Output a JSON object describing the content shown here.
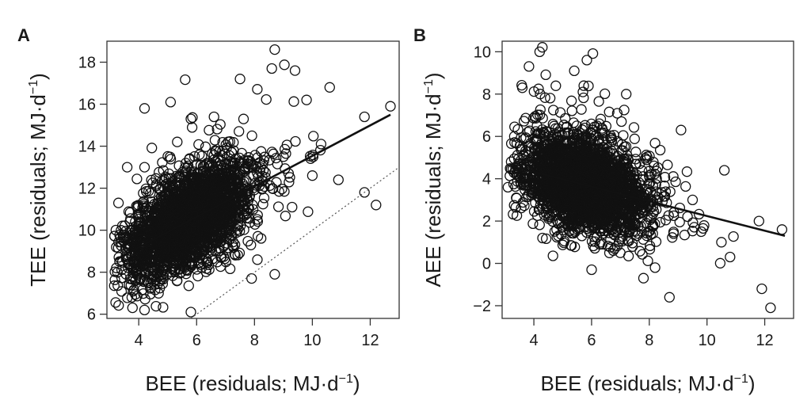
{
  "chart_data": [
    {
      "type": "scatter",
      "panel_label": "A",
      "xlabel": "BEE (residuals; MJ·d",
      "xlabel_sup": "−1",
      "xlabel_close": ")",
      "ylabel": "TEE (residuals; MJ·d",
      "ylabel_sup": "−1",
      "ylabel_close": ")",
      "xlim": [
        2.9,
        13.0
      ],
      "ylim": [
        5.8,
        19.0
      ],
      "xticks": [
        4,
        6,
        8,
        10,
        12
      ],
      "yticks": [
        6,
        8,
        10,
        12,
        14,
        16,
        18
      ],
      "grid": false,
      "legend": "none",
      "marker": "open-circle",
      "n_points_approx": 2500,
      "fit_line": {
        "x": [
          3.2,
          12.7
        ],
        "y": [
          8.6,
          15.5
        ]
      },
      "reference_line": {
        "x": [
          5.8,
          13.0
        ],
        "y": [
          5.8,
          13.0
        ],
        "style": "dotted"
      },
      "distribution": {
        "x_mean": 5.6,
        "x_sd": 1.05,
        "y_intercept": 6.27,
        "slope": 0.726,
        "resid_sd": 1.1
      },
      "outliers": [
        {
          "x": 8.7,
          "y": 18.6
        },
        {
          "x": 8.6,
          "y": 17.7
        },
        {
          "x": 9.4,
          "y": 17.6
        },
        {
          "x": 12.7,
          "y": 15.9
        },
        {
          "x": 11.8,
          "y": 15.4
        },
        {
          "x": 10.6,
          "y": 16.8
        },
        {
          "x": 10.3,
          "y": 14.1
        },
        {
          "x": 12.2,
          "y": 11.2
        },
        {
          "x": 11.8,
          "y": 11.8
        },
        {
          "x": 10.9,
          "y": 12.4
        },
        {
          "x": 4.2,
          "y": 15.8
        },
        {
          "x": 5.1,
          "y": 16.1
        },
        {
          "x": 5.8,
          "y": 15.3
        },
        {
          "x": 4.2,
          "y": 13.0
        },
        {
          "x": 3.3,
          "y": 11.3
        },
        {
          "x": 3.6,
          "y": 13.0
        },
        {
          "x": 8.7,
          "y": 7.9
        },
        {
          "x": 7.9,
          "y": 7.7
        },
        {
          "x": 8.1,
          "y": 8.6
        },
        {
          "x": 5.8,
          "y": 6.1
        },
        {
          "x": 4.2,
          "y": 6.2
        },
        {
          "x": 9.0,
          "y": 13.5
        },
        {
          "x": 7.5,
          "y": 17.2
        },
        {
          "x": 6.6,
          "y": 15.4
        },
        {
          "x": 9.8,
          "y": 16.2
        },
        {
          "x": 10.0,
          "y": 12.6
        },
        {
          "x": 9.3,
          "y": 11.1
        }
      ]
    },
    {
      "type": "scatter",
      "panel_label": "B",
      "xlabel": "BEE (residuals; MJ·d",
      "xlabel_sup": "−1",
      "xlabel_close": ")",
      "ylabel": "AEE (residuals; MJ·d",
      "ylabel_sup": "−1",
      "ylabel_close": ")",
      "xlim": [
        2.9,
        13.0
      ],
      "ylim": [
        -2.6,
        10.5
      ],
      "xticks": [
        4,
        6,
        8,
        10,
        12
      ],
      "yticks": [
        -2,
        0,
        2,
        4,
        6,
        8,
        10
      ],
      "grid": false,
      "legend": "none",
      "marker": "open-circle",
      "n_points_approx": 2500,
      "fit_line": {
        "x": [
          3.2,
          12.7
        ],
        "y": [
          4.6,
          1.3
        ]
      },
      "distribution": {
        "x_mean": 5.6,
        "x_sd": 1.05,
        "y_intercept": 5.71,
        "slope": -0.347,
        "resid_sd": 1.1
      },
      "outliers": [
        {
          "x": 4.2,
          "y": 10.0
        },
        {
          "x": 5.4,
          "y": 9.1
        },
        {
          "x": 3.6,
          "y": 8.3
        },
        {
          "x": 5.7,
          "y": 8.1
        },
        {
          "x": 7.2,
          "y": 8.0
        },
        {
          "x": 12.6,
          "y": 1.6
        },
        {
          "x": 11.8,
          "y": 2.0
        },
        {
          "x": 11.9,
          "y": -1.2
        },
        {
          "x": 12.2,
          "y": -2.1
        },
        {
          "x": 8.7,
          "y": -1.6
        },
        {
          "x": 10.8,
          "y": 0.3
        },
        {
          "x": 10.6,
          "y": 4.4
        },
        {
          "x": 9.1,
          "y": 6.3
        },
        {
          "x": 9.5,
          "y": 3.0
        },
        {
          "x": 3.1,
          "y": 3.6
        },
        {
          "x": 4.3,
          "y": 1.2
        },
        {
          "x": 7.8,
          "y": -0.7
        },
        {
          "x": 8.2,
          "y": -0.2
        },
        {
          "x": 6.0,
          "y": -0.3
        },
        {
          "x": 9.8,
          "y": 1.5
        },
        {
          "x": 10.5,
          "y": 1.0
        }
      ]
    }
  ]
}
